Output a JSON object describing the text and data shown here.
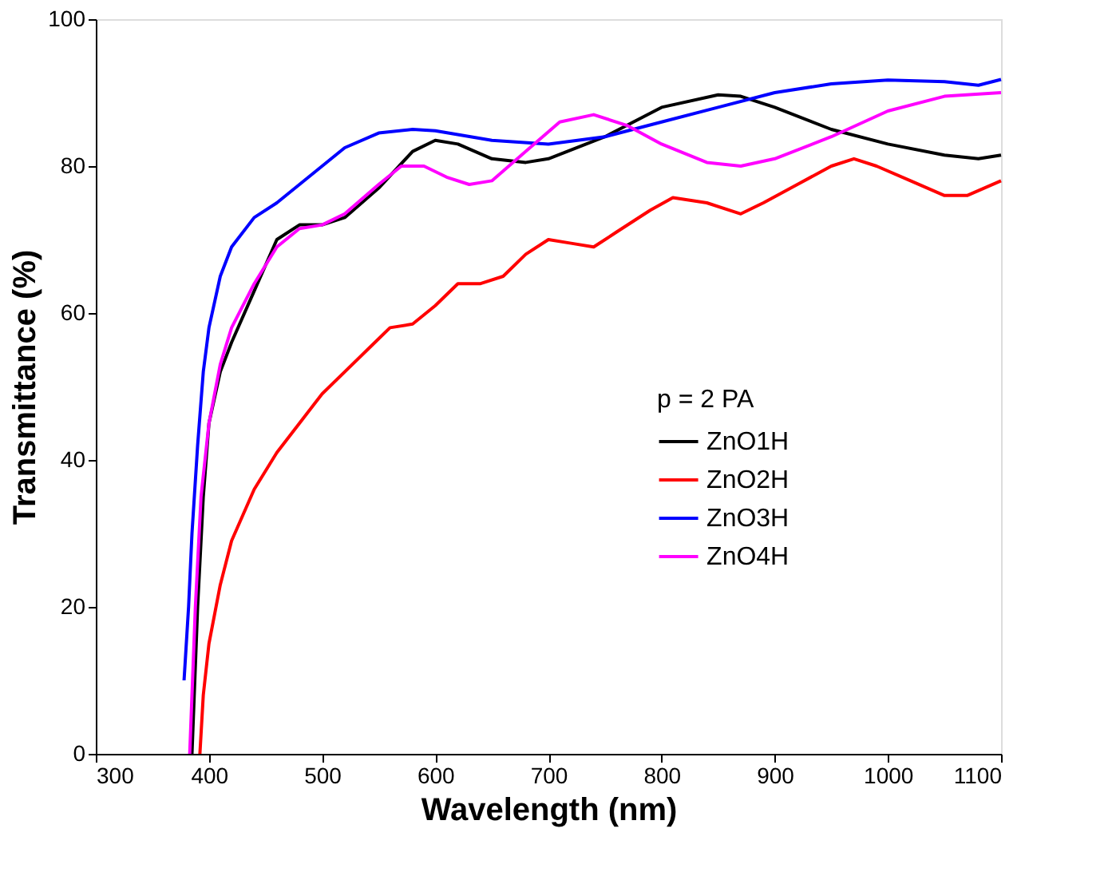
{
  "chart_data": {
    "type": "line",
    "xlabel": "Wavelength (nm)",
    "ylabel": "Transmittance (%)",
    "legend_title": "p = 2 PA",
    "legend": "right",
    "grid": false,
    "line_style": "solid",
    "marker": "none",
    "xlim": [
      300,
      1100
    ],
    "xticks": [
      300,
      400,
      500,
      600,
      700,
      800,
      900,
      1000,
      1100
    ],
    "ylim": [
      0,
      100
    ],
    "yticks": [
      0,
      20,
      40,
      60,
      80,
      100
    ],
    "series": [
      {
        "name": "ZnO1H",
        "color": "#000000",
        "x": [
          385,
          390,
          395,
          400,
          410,
          420,
          440,
          460,
          480,
          500,
          520,
          550,
          580,
          600,
          620,
          650,
          680,
          700,
          750,
          800,
          850,
          870,
          900,
          950,
          1000,
          1050,
          1080,
          1100
        ],
        "values": [
          0,
          20,
          35,
          45,
          52,
          56,
          63,
          70,
          72,
          72,
          73,
          77,
          82,
          83.5,
          83,
          81,
          80.5,
          81,
          84,
          88,
          89.7,
          89.5,
          88,
          85,
          83,
          81.5,
          81,
          81.5
        ]
      },
      {
        "name": "ZnO2H",
        "color": "#ff0000",
        "x": [
          392,
          395,
          400,
          410,
          420,
          440,
          460,
          480,
          500,
          520,
          540,
          560,
          580,
          600,
          620,
          640,
          660,
          680,
          700,
          720,
          740,
          760,
          790,
          810,
          840,
          870,
          890,
          920,
          950,
          970,
          990,
          1020,
          1050,
          1070,
          1100
        ],
        "values": [
          0,
          8,
          15,
          23,
          29,
          36,
          41,
          45,
          49,
          52,
          55,
          58,
          58.5,
          61,
          64,
          64,
          65,
          68,
          70,
          69.5,
          69,
          71,
          74,
          75.7,
          75,
          73.5,
          75,
          77.5,
          80,
          81,
          80,
          78,
          76,
          76,
          78
        ]
      },
      {
        "name": "ZnO3H",
        "color": "#0000ff",
        "x": [
          378,
          382,
          385,
          390,
          395,
          400,
          410,
          420,
          440,
          460,
          480,
          500,
          520,
          550,
          580,
          600,
          650,
          700,
          750,
          800,
          850,
          900,
          950,
          1000,
          1050,
          1080,
          1100
        ],
        "values": [
          10,
          20,
          30,
          42,
          52,
          58,
          65,
          69,
          73,
          75,
          77.5,
          80,
          82.5,
          84.5,
          85,
          84.8,
          83.5,
          83,
          84,
          86,
          88,
          90,
          91.2,
          91.7,
          91.5,
          91,
          91.8
        ]
      },
      {
        "name": "ZnO4H",
        "color": "#ff00ff",
        "x": [
          383,
          388,
          393,
          400,
          410,
          420,
          440,
          460,
          480,
          500,
          520,
          550,
          570,
          590,
          610,
          630,
          650,
          680,
          710,
          740,
          770,
          800,
          840,
          870,
          900,
          950,
          1000,
          1050,
          1100
        ],
        "values": [
          0,
          20,
          35,
          45,
          53,
          58,
          64,
          69,
          71.5,
          72,
          73.5,
          77.5,
          80,
          80,
          78.5,
          77.5,
          78,
          82,
          86,
          87,
          85.5,
          83,
          80.5,
          80,
          81,
          84,
          87.5,
          89.5,
          90
        ]
      }
    ]
  }
}
